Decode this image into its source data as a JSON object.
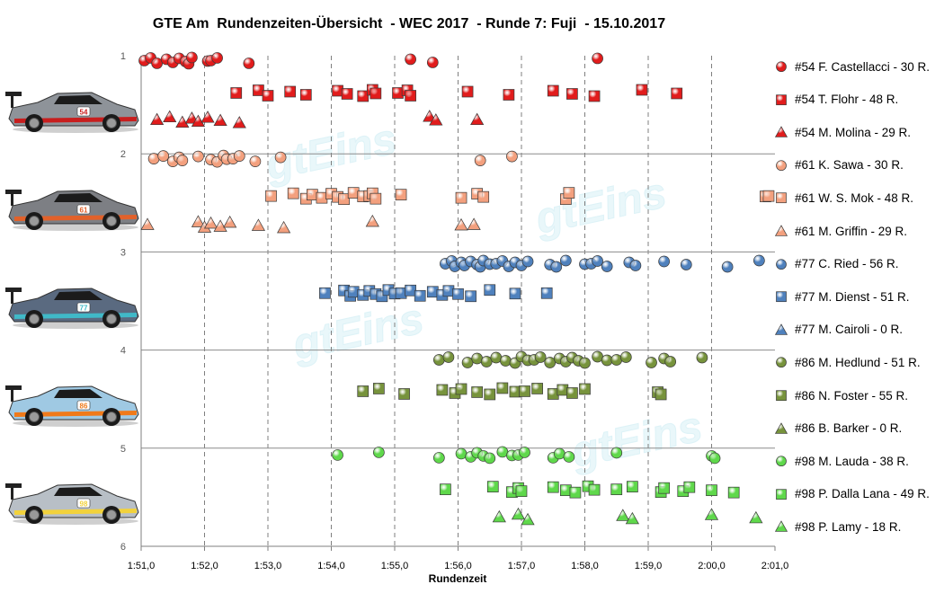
{
  "title": "GTE Am  Rundenzeiten-Übersicht  - WEC 2017  - Runde 7: Fuji  - 15.10.2017",
  "watermark": "gtEins",
  "chart_data": {
    "type": "scatter",
    "xlabel": "Rundenzeit",
    "ylabel": "",
    "xlim": [
      111.0,
      121.0
    ],
    "ylim": [
      1,
      6
    ],
    "x_ticks": [
      "1:51,0",
      "1:52,0",
      "1:53,0",
      "1:54,0",
      "1:55,0",
      "1:56,0",
      "1:57,0",
      "1:58,0",
      "1:59,0",
      "2:00,0",
      "2:01,0"
    ],
    "y_ticks": [
      "1",
      "2",
      "3",
      "4",
      "5",
      "6"
    ],
    "grid": {
      "vertical": "dashed",
      "horizontal": "solid"
    },
    "legend_position": "right",
    "series": [
      {
        "name": "#54 F. Castellacci - 30 R.",
        "color": "#e11c1c",
        "marker": "circle",
        "y": 1.05,
        "x": [
          111.05,
          111.15,
          111.25,
          111.4,
          111.5,
          111.6,
          111.7,
          111.75,
          111.8,
          112.05,
          112.1,
          112.2,
          112.7,
          115.25,
          115.6,
          118.2
        ]
      },
      {
        "name": "#54 T. Flohr - 48 R.",
        "color": "#e11c1c",
        "marker": "square",
        "y": 1.38,
        "x": [
          112.5,
          112.85,
          113.0,
          113.35,
          113.6,
          114.1,
          114.25,
          114.5,
          114.65,
          114.7,
          115.05,
          115.2,
          115.25,
          116.15,
          116.8,
          117.5,
          117.8,
          118.15,
          118.9,
          119.45
        ]
      },
      {
        "name": "#54 M. Molina - 29 R.",
        "color": "#e11c1c",
        "marker": "triangle",
        "y": 1.65,
        "x": [
          111.25,
          111.45,
          111.65,
          111.8,
          111.9,
          112.05,
          112.25,
          112.55,
          115.55,
          115.65,
          116.3
        ]
      },
      {
        "name": "#61 K. Sawa - 30 R.",
        "color": "#f3a07e",
        "marker": "circle",
        "y": 2.05,
        "x": [
          111.2,
          111.35,
          111.5,
          111.6,
          111.65,
          111.9,
          112.1,
          112.2,
          112.3,
          112.35,
          112.45,
          112.55,
          112.8,
          113.2,
          116.35,
          116.85
        ]
      },
      {
        "name": "#61 W. S. Mok - 48 R.",
        "color": "#f3a07e",
        "marker": "square",
        "y": 2.43,
        "x": [
          113.05,
          113.4,
          113.6,
          113.7,
          113.85,
          114.0,
          114.1,
          114.2,
          114.35,
          114.5,
          114.6,
          114.65,
          114.7,
          115.1,
          116.05,
          116.3,
          116.4,
          117.7,
          117.75,
          120.85,
          120.9
        ]
      },
      {
        "name": "#61 M. Griffin - 29 R.",
        "color": "#f3a07e",
        "marker": "triangle",
        "y": 2.72,
        "x": [
          111.1,
          111.9,
          112.0,
          112.1,
          112.25,
          112.4,
          112.85,
          113.25,
          114.65,
          116.05,
          116.25
        ]
      },
      {
        "name": "#77 C. Ried - 56 R.",
        "color": "#4f81bd",
        "marker": "circle",
        "y": 3.12,
        "x": [
          115.8,
          115.9,
          115.95,
          116.05,
          116.1,
          116.2,
          116.3,
          116.35,
          116.4,
          116.5,
          116.6,
          116.7,
          116.8,
          116.9,
          117.0,
          117.1,
          117.45,
          117.55,
          117.7,
          118.0,
          118.1,
          118.2,
          118.35,
          118.7,
          118.8,
          119.25,
          119.6,
          120.25,
          120.75
        ]
      },
      {
        "name": "#77 M. Dienst - 51 R.",
        "color": "#4f81bd",
        "marker": "square",
        "y": 3.42,
        "x": [
          113.9,
          114.2,
          114.3,
          114.35,
          114.5,
          114.6,
          114.7,
          114.8,
          114.9,
          115.0,
          115.1,
          115.25,
          115.4,
          115.6,
          115.75,
          115.85,
          116.0,
          116.2,
          116.5,
          116.9,
          117.4
        ]
      },
      {
        "name": "#77 M. Cairoli - 0 R.",
        "color": "#4f81bd",
        "marker": "triangle",
        "y": 3.8,
        "x": []
      },
      {
        "name": "#86 M. Hedlund - 51 R.",
        "color": "#77933c",
        "marker": "circle",
        "y": 4.1,
        "x": [
          115.7,
          115.85,
          116.15,
          116.3,
          116.45,
          116.6,
          116.75,
          116.9,
          117.0,
          117.1,
          117.2,
          117.3,
          117.45,
          117.6,
          117.7,
          117.8,
          117.9,
          118.0,
          118.2,
          118.35,
          118.5,
          118.65,
          119.05,
          119.25,
          119.35,
          119.85
        ]
      },
      {
        "name": "#86 N. Foster - 55 R.",
        "color": "#77933c",
        "marker": "square",
        "y": 4.42,
        "x": [
          114.5,
          114.75,
          115.15,
          115.75,
          115.95,
          116.05,
          116.3,
          116.5,
          116.7,
          116.9,
          117.05,
          117.25,
          117.5,
          117.65,
          117.8,
          118.0,
          119.15,
          119.2
        ]
      },
      {
        "name": "#86 B. Barker - 0 R.",
        "color": "#77933c",
        "marker": "triangle",
        "y": 4.8,
        "x": []
      },
      {
        "name": "#98 M. Lauda - 38 R.",
        "color": "#5fd84b",
        "marker": "circle",
        "y": 5.07,
        "x": [
          114.1,
          114.75,
          115.7,
          116.05,
          116.2,
          116.3,
          116.4,
          116.5,
          116.7,
          116.85,
          116.95,
          117.05,
          117.5,
          117.6,
          117.75,
          118.5,
          120.0,
          120.05
        ]
      },
      {
        "name": "#98 P. Dalla Lana - 49 R.",
        "color": "#5fd84b",
        "marker": "square",
        "y": 5.42,
        "x": [
          115.8,
          116.55,
          116.85,
          116.95,
          117.0,
          117.5,
          117.7,
          117.85,
          118.05,
          118.15,
          118.5,
          118.75,
          119.2,
          119.25,
          119.55,
          119.65,
          120.0,
          120.35
        ]
      },
      {
        "name": "#98 P. Lamy - 18 R.",
        "color": "#5fd84b",
        "marker": "triangle",
        "y": 5.7,
        "x": [
          116.65,
          116.95,
          117.1,
          118.6,
          118.75,
          120.0,
          120.7
        ]
      }
    ]
  },
  "cars": [
    {
      "name": "car-54-icon",
      "number": "54",
      "body": "#8e9399",
      "accent": "#c81e1e"
    },
    {
      "name": "car-61-icon",
      "number": "61",
      "body": "#7d7f84",
      "accent": "#e2612a"
    },
    {
      "name": "car-77-icon",
      "number": "77",
      "body": "#5a6a80",
      "accent": "#40b9c8"
    },
    {
      "name": "car-86-icon",
      "number": "86",
      "body": "#9fc9e3",
      "accent": "#f07a1a"
    },
    {
      "name": "car-98-icon",
      "number": "98",
      "body": "#b8bfc6",
      "accent": "#f2d23c"
    }
  ]
}
